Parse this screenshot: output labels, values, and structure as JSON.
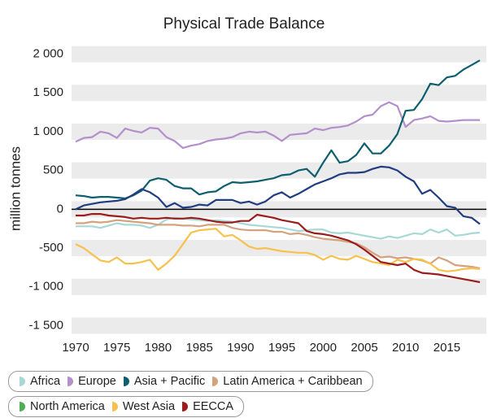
{
  "chart_data": {
    "type": "line",
    "title": "Physical Trade Balance",
    "y_label": "million tonnes",
    "x": [
      1970,
      1971,
      1972,
      1973,
      1974,
      1975,
      1976,
      1977,
      1978,
      1979,
      1980,
      1981,
      1982,
      1983,
      1984,
      1985,
      1986,
      1987,
      1988,
      1989,
      1990,
      1991,
      1992,
      1993,
      1994,
      1995,
      1996,
      1997,
      1998,
      1999,
      2000,
      2001,
      2002,
      2003,
      2004,
      2005,
      2006,
      2007,
      2008,
      2009,
      2010,
      2011,
      2012,
      2013,
      2014,
      2015,
      2016,
      2017,
      2018,
      2019
    ],
    "xlim": [
      1970,
      2019
    ],
    "xticks": [
      1970,
      1975,
      1980,
      1985,
      1990,
      1995,
      2000,
      2005,
      2010,
      2015
    ],
    "ylim": [
      -1600,
      2100
    ],
    "yticks": [
      {
        "value": 2000,
        "label": "2 000"
      },
      {
        "value": 1500,
        "label": "1 500"
      },
      {
        "value": 1000,
        "label": "1 000"
      },
      500,
      0,
      -500,
      {
        "value": -1000,
        "label": "-1 000"
      },
      {
        "value": -1500,
        "label": "-1 500"
      }
    ],
    "grid": "bands",
    "zero_line": true,
    "legend": "bottom",
    "series": [
      {
        "name": "Africa",
        "color": "#a8d8d5",
        "values": [
          -220,
          -220,
          -220,
          -240,
          -210,
          -180,
          -200,
          -200,
          -210,
          -240,
          -200,
          -130,
          -110,
          -120,
          -130,
          -140,
          -150,
          -140,
          -150,
          -160,
          -180,
          -200,
          -210,
          -220,
          -230,
          -240,
          -260,
          -280,
          -270,
          -260,
          -260,
          -300,
          -310,
          -300,
          -320,
          -340,
          -360,
          -380,
          -350,
          -370,
          -340,
          -310,
          -320,
          -260,
          -300,
          -260,
          -340,
          -330,
          -310,
          -300
        ]
      },
      {
        "name": "Europe",
        "color": "#b48fcb",
        "values": [
          870,
          920,
          930,
          1000,
          980,
          920,
          1040,
          1010,
          990,
          1050,
          1040,
          930,
          880,
          790,
          820,
          840,
          880,
          900,
          910,
          930,
          980,
          1000,
          990,
          1000,
          950,
          880,
          960,
          970,
          980,
          1040,
          1020,
          1050,
          1060,
          1080,
          1130,
          1200,
          1220,
          1330,
          1380,
          1330,
          1060,
          1150,
          1170,
          1200,
          1140,
          1130,
          1140,
          1150,
          1150,
          1150
        ]
      },
      {
        "name": "Asia + Pacific",
        "color": "#0d5f6f",
        "values": [
          180,
          170,
          150,
          160,
          160,
          150,
          140,
          180,
          240,
          370,
          400,
          380,
          300,
          270,
          270,
          190,
          220,
          230,
          300,
          350,
          340,
          350,
          360,
          380,
          400,
          440,
          450,
          500,
          520,
          420,
          600,
          760,
          600,
          620,
          700,
          850,
          720,
          720,
          820,
          970,
          1270,
          1280,
          1420,
          1620,
          1600,
          1700,
          1720,
          1800,
          1860,
          1920
        ]
      },
      {
        "name": "Latin America + Caribbean",
        "color": "#d4a27c",
        "values": [
          -180,
          -180,
          -160,
          -170,
          -160,
          -140,
          -150,
          -160,
          -170,
          -180,
          -200,
          -200,
          -200,
          -210,
          -210,
          -220,
          -200,
          -200,
          -200,
          -240,
          -260,
          -270,
          -270,
          -270,
          -290,
          -290,
          -320,
          -310,
          -330,
          -360,
          -380,
          -390,
          -400,
          -420,
          -440,
          -490,
          -560,
          -620,
          -610,
          -630,
          -620,
          -640,
          -660,
          -700,
          -620,
          -660,
          -720,
          -730,
          -740,
          -760
        ]
      },
      {
        "name": "North America",
        "color": "#1f3d80",
        "legend_color": "#4caf50",
        "values": [
          0,
          50,
          70,
          90,
          100,
          110,
          130,
          190,
          260,
          220,
          150,
          30,
          80,
          20,
          30,
          60,
          50,
          120,
          120,
          120,
          80,
          100,
          60,
          100,
          180,
          220,
          150,
          200,
          260,
          320,
          360,
          400,
          450,
          470,
          470,
          480,
          520,
          550,
          540,
          500,
          420,
          360,
          200,
          250,
          150,
          40,
          20,
          -90,
          -110,
          -190
        ]
      },
      {
        "name": "West Asia",
        "color": "#f6c14c",
        "values": [
          -450,
          -500,
          -580,
          -660,
          -680,
          -620,
          -700,
          -700,
          -680,
          -650,
          -780,
          -700,
          -600,
          -450,
          -300,
          -270,
          -260,
          -250,
          -350,
          -330,
          -400,
          -480,
          -510,
          -500,
          -520,
          -540,
          -550,
          -560,
          -560,
          -590,
          -650,
          -600,
          -640,
          -650,
          -600,
          -640,
          -680,
          -700,
          -720,
          -650,
          -680,
          -640,
          -650,
          -700,
          -780,
          -800,
          -790,
          -770,
          -760,
          -770
        ]
      },
      {
        "name": "EECCA",
        "color": "#9b1c1c",
        "values": [
          -80,
          -80,
          -60,
          -60,
          -80,
          -90,
          -100,
          -120,
          -110,
          -120,
          -120,
          -110,
          -120,
          -120,
          -110,
          -120,
          -140,
          -160,
          -170,
          -170,
          -150,
          -150,
          -70,
          -90,
          -110,
          -140,
          -160,
          -180,
          -280,
          -310,
          -320,
          -340,
          -370,
          -400,
          -450,
          -520,
          -600,
          -680,
          -700,
          -720,
          -700,
          -780,
          -820,
          -830,
          -840,
          -860,
          -880,
          -900,
          -920,
          -940
        ]
      }
    ]
  }
}
